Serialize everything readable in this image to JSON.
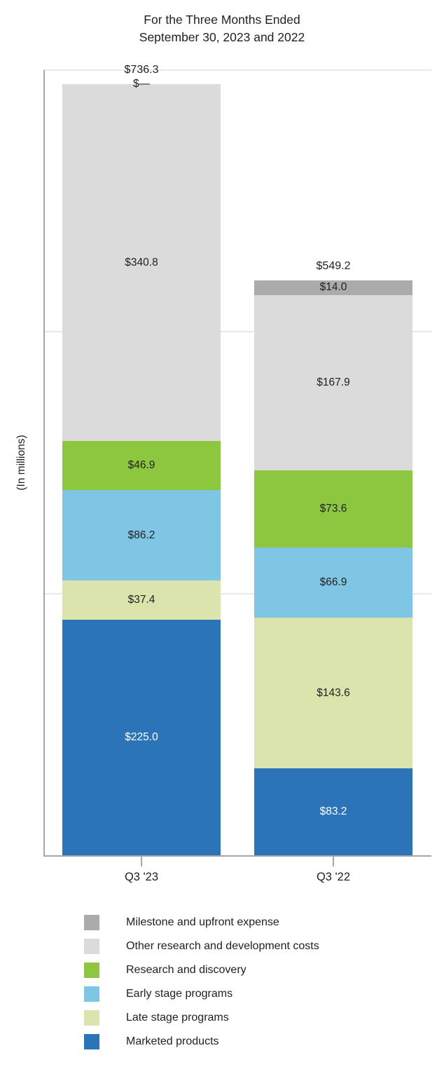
{
  "title": {
    "line1": "For the Three Months Ended",
    "line2": "September 30, 2023 and 2022"
  },
  "y_axis_label": "(In millions)",
  "chart_data": {
    "type": "bar",
    "stacked": true,
    "title": "For the Three Months Ended September 30, 2023 and 2022",
    "ylabel": "(In millions)",
    "xlabel": "",
    "categories": [
      "Q3 '23",
      "Q3 '22"
    ],
    "series": [
      {
        "name": "Marketed products",
        "color": "#2B74B8",
        "label_color": "#ffffff",
        "values": [
          225.0,
          83.2
        ],
        "labels": [
          "$225.0",
          "$83.2"
        ]
      },
      {
        "name": "Late stage programs",
        "color": "#DCE4AE",
        "label_color": "#212121",
        "values": [
          37.4,
          143.6
        ],
        "labels": [
          "$37.4",
          "$143.6"
        ]
      },
      {
        "name": "Early stage programs",
        "color": "#7FC5E4",
        "label_color": "#212121",
        "values": [
          86.2,
          66.9
        ],
        "labels": [
          "$86.2",
          "$66.9"
        ]
      },
      {
        "name": "Research and discovery",
        "color": "#8DC63F",
        "label_color": "#212121",
        "values": [
          46.9,
          73.6
        ],
        "labels": [
          "$46.9",
          "$73.6"
        ]
      },
      {
        "name": "Other research and development costs",
        "color": "#DBDBDB",
        "label_color": "#212121",
        "values": [
          340.8,
          167.9
        ],
        "labels": [
          "$340.8",
          "$167.9"
        ]
      },
      {
        "name": "Milestone and upfront expense",
        "color": "#ABABAB",
        "label_color": "#212121",
        "values": [
          0,
          14.0
        ],
        "labels": [
          "$—",
          "$14.0"
        ]
      }
    ],
    "totals": [
      736.3,
      549.2
    ],
    "total_labels": [
      "$736.3",
      "$549.2"
    ],
    "ylim": [
      0,
      750
    ],
    "gridlines": [
      250,
      500,
      750
    ],
    "grid": true,
    "legend_position": "bottom",
    "legend_order_top_to_bottom": [
      "Milestone and upfront expense",
      "Other research and development costs",
      "Research and discovery",
      "Early stage programs",
      "Late stage programs",
      "Marketed products"
    ],
    "axis_color": "#A6A6A6",
    "gridline_color": "#E9E9E9"
  }
}
